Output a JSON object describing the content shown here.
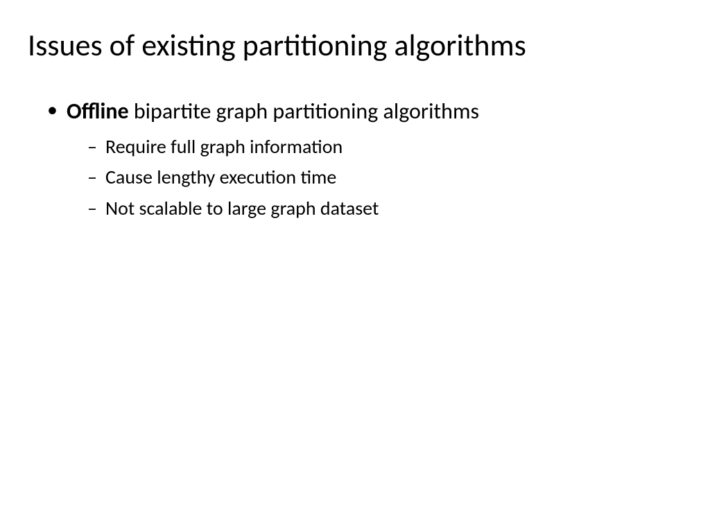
{
  "slide": {
    "title": "Issues of existing partitioning algorithms",
    "bullet1": {
      "bold": "Offline",
      "rest": " bipartite graph partitioning algorithms",
      "sub": [
        "Require full graph information",
        "Cause lengthy execution time",
        "Not scalable to large graph dataset"
      ]
    },
    "style": {
      "background_color": "#ffffff",
      "text_color": "#000000",
      "title_fontsize": 44,
      "level1_fontsize": 32,
      "level2_fontsize": 28,
      "font_family": "Calibri"
    }
  }
}
